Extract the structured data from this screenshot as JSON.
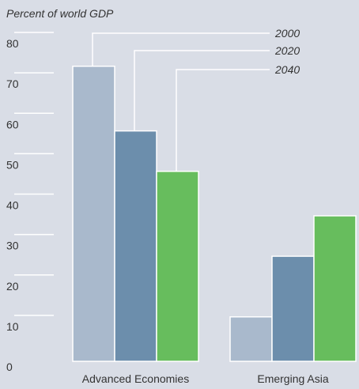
{
  "chart_data": {
    "type": "bar",
    "title": "",
    "ylabel": "Percent of world GDP",
    "xlabel": "",
    "ylim": [
      0,
      80
    ],
    "yticks": [
      0,
      10,
      20,
      30,
      40,
      50,
      60,
      70,
      80
    ],
    "categories": [
      "Advanced Economies",
      "Emerging Asia"
    ],
    "series": [
      {
        "name": "2000",
        "color": "#a9b9cc",
        "values": [
          73,
          11
        ]
      },
      {
        "name": "2020",
        "color": "#6c8eac",
        "values": [
          57,
          26
        ]
      },
      {
        "name": "2040",
        "color": "#67bd5d",
        "values": [
          47,
          36
        ]
      }
    ],
    "legend": "top-right, leader lines to first category bars",
    "grid": true
  }
}
